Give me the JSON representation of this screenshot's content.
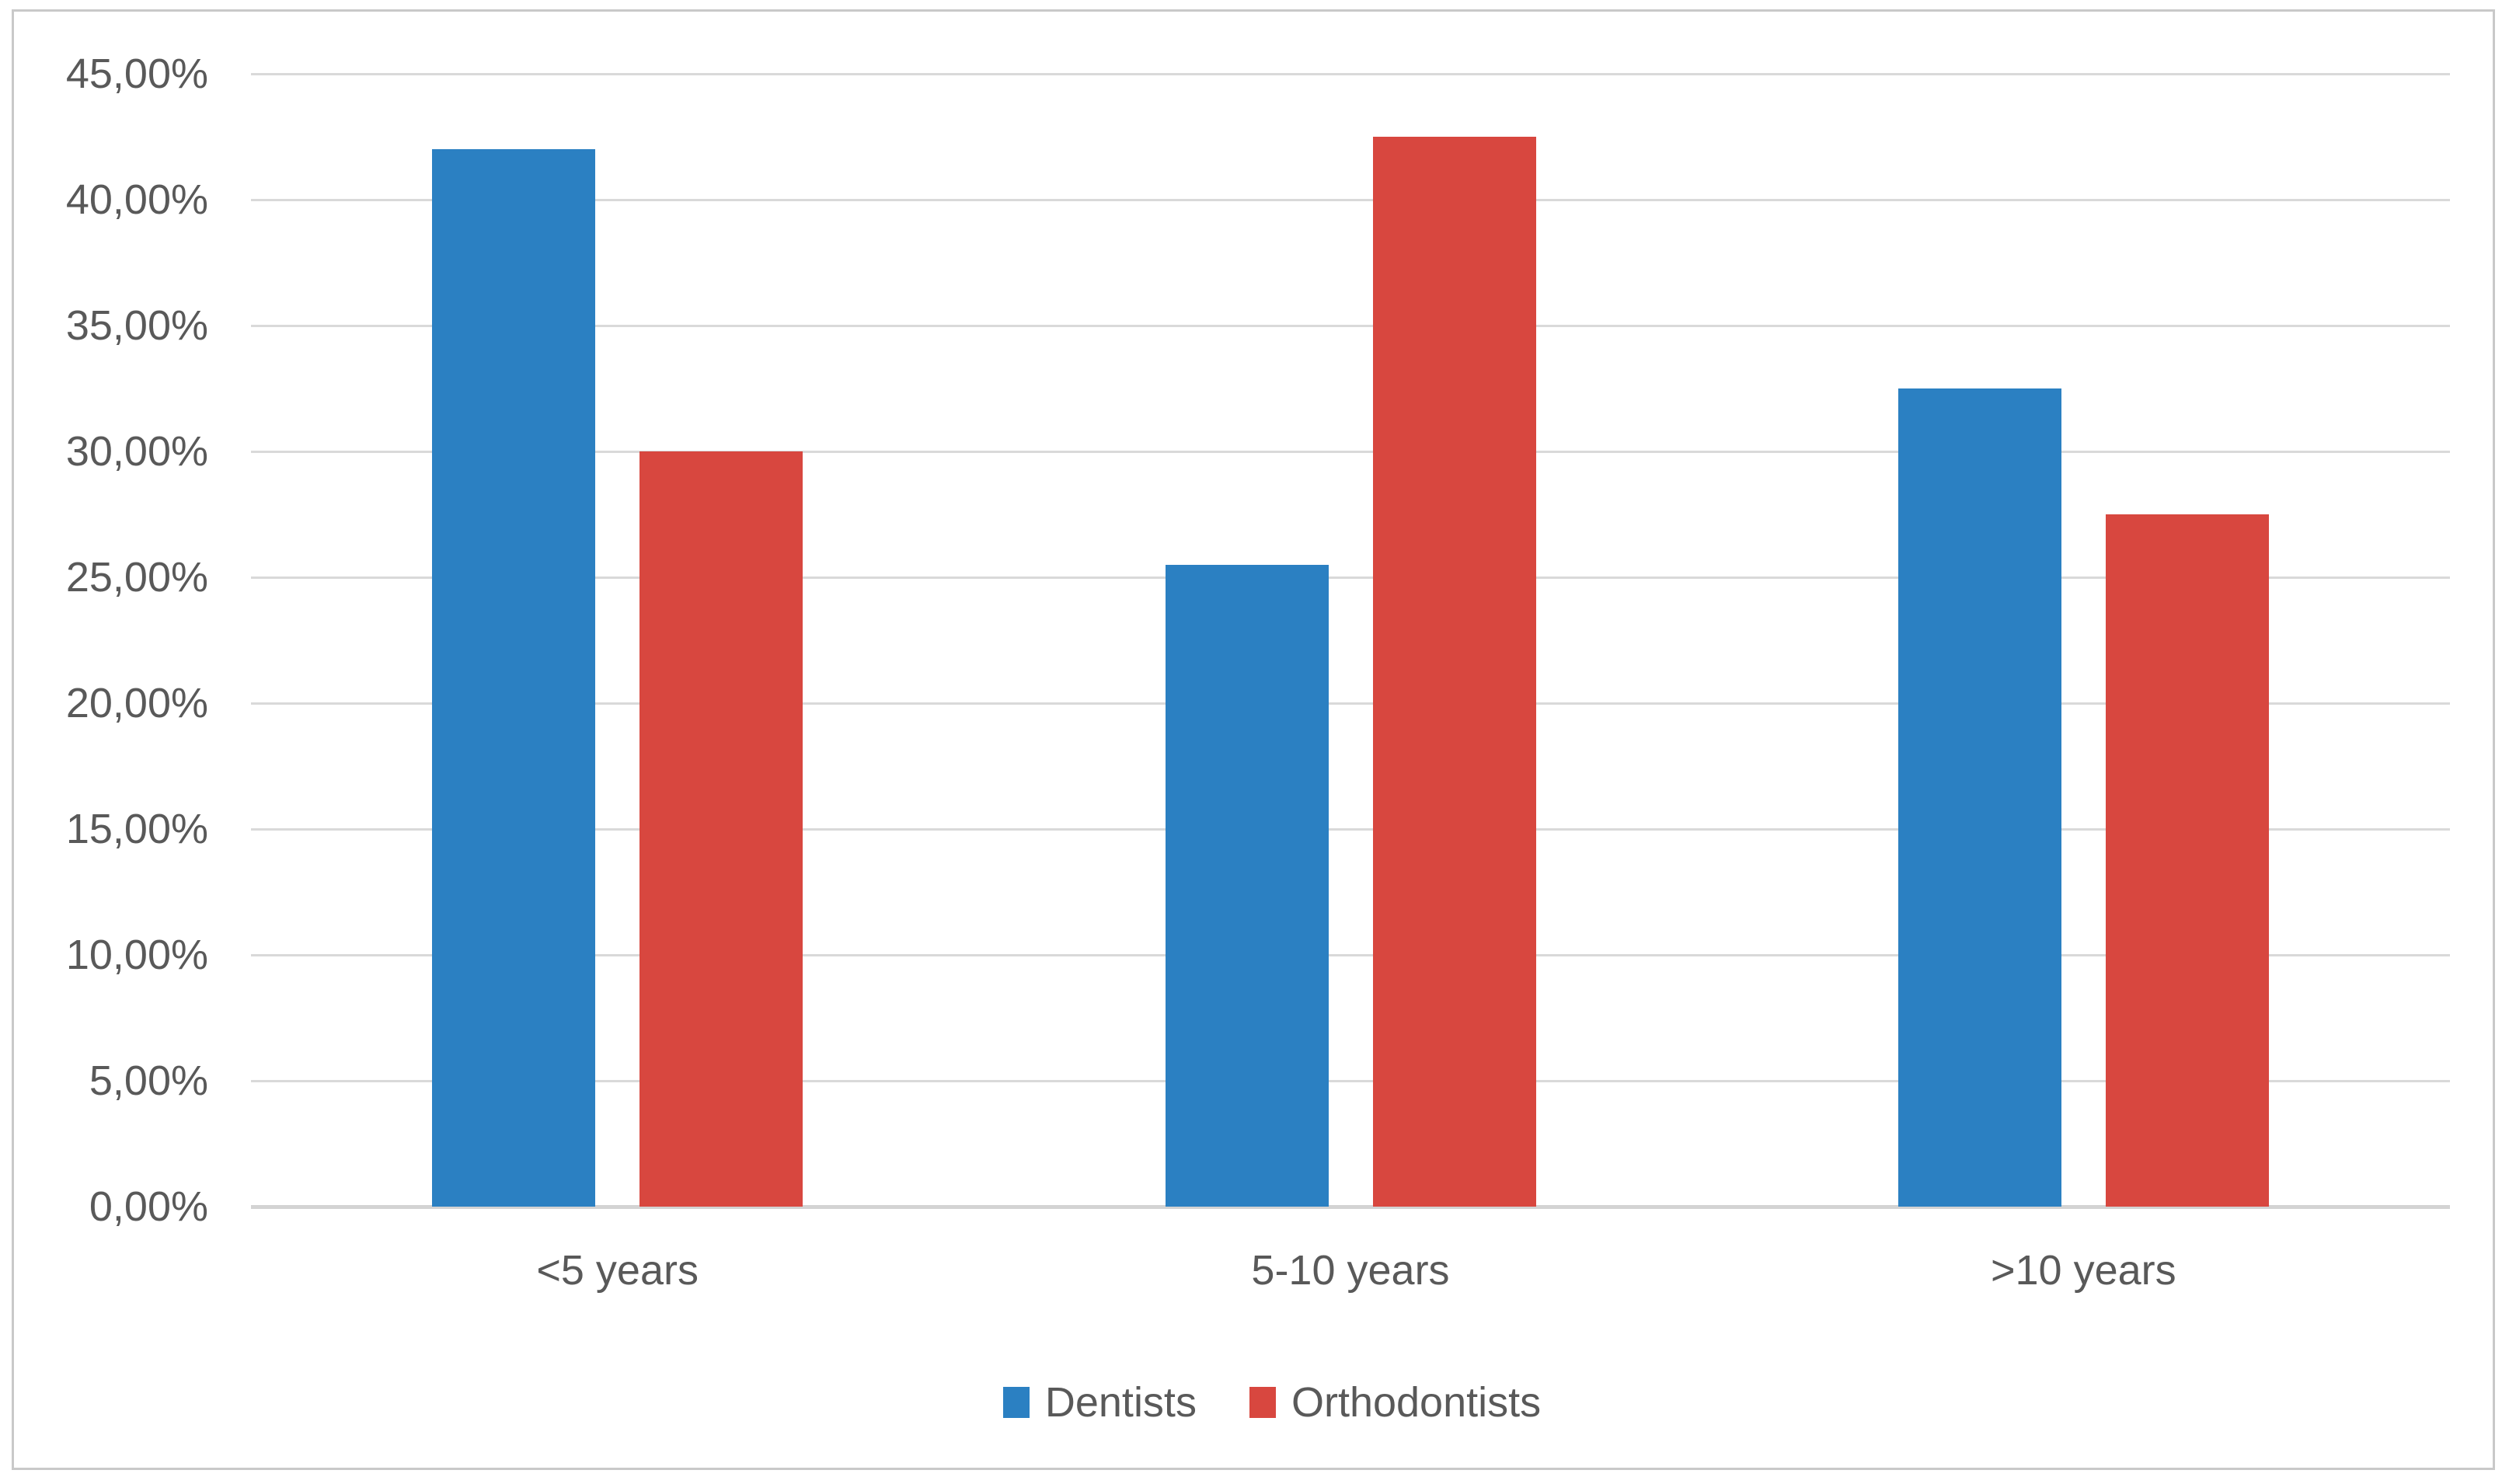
{
  "chart_data": {
    "type": "bar",
    "title": "",
    "xlabel": "",
    "ylabel": "",
    "categories": [
      "<5 years",
      "5-10 years",
      ">10 years"
    ],
    "series": [
      {
        "name": "Dentists",
        "color": "#2b80c2",
        "values": [
          42.0,
          25.5,
          32.5
        ]
      },
      {
        "name": "Orthodontists",
        "color": "#d8473f",
        "values": [
          30.0,
          42.5,
          27.5
        ]
      }
    ],
    "value_unit": "%",
    "ylim": [
      0,
      45
    ],
    "y_tick_step": 5,
    "y_ticks": [
      {
        "value": 45,
        "label": "45,00%"
      },
      {
        "value": 40,
        "label": "40,00%"
      },
      {
        "value": 35,
        "label": "35,00%"
      },
      {
        "value": 30,
        "label": "30,00%"
      },
      {
        "value": 25,
        "label": "25,00%"
      },
      {
        "value": 20,
        "label": "20,00%"
      },
      {
        "value": 15,
        "label": "15,00%"
      },
      {
        "value": 10,
        "label": "10,00%"
      },
      {
        "value": 5,
        "label": "5,00%"
      },
      {
        "value": 0,
        "label": "0,00%"
      }
    ],
    "grid": true,
    "legend_position": "bottom-center",
    "colors": {
      "gridline": "#d9d9d9",
      "axis_line": "#d3d3d3",
      "frame_border": "#c9c9c9",
      "text": "#595959",
      "background": "#ffffff"
    }
  }
}
